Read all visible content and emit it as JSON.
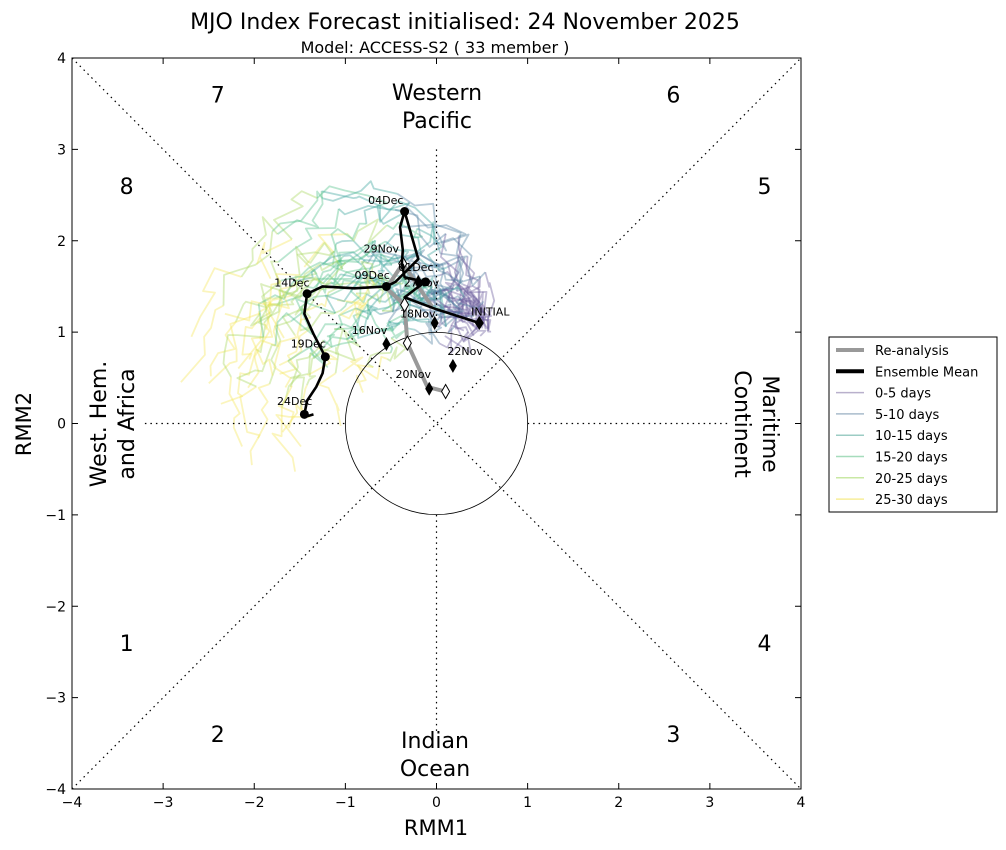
{
  "chart_data": {
    "type": "line",
    "title": "MJO Index Forecast initialised:  24  November 2025",
    "subtitle": "Model: ACCESS-S2 ( 33 member )",
    "xlabel": "RMM1",
    "ylabel": "RMM2",
    "xlim": [
      -4,
      4
    ],
    "ylim": [
      -4,
      4
    ],
    "xticks": [
      "−4",
      "−3",
      "−2",
      "−1",
      "0",
      "1",
      "2",
      "3",
      "4"
    ],
    "yticks": [
      "−4",
      "−3",
      "−2",
      "−1",
      "0",
      "1",
      "2",
      "3",
      "4"
    ],
    "phases": [
      {
        "label": "1",
        "x": -3.4,
        "y": -2.4
      },
      {
        "label": "2",
        "x": -2.4,
        "y": -3.4
      },
      {
        "label": "3",
        "x": 2.6,
        "y": -3.4
      },
      {
        "label": "4",
        "x": 3.6,
        "y": -2.4
      },
      {
        "label": "5",
        "x": 3.6,
        "y": 2.6
      },
      {
        "label": "6",
        "x": 2.6,
        "y": 3.6
      },
      {
        "label": "7",
        "x": -2.4,
        "y": 3.6
      },
      {
        "label": "8",
        "x": -3.4,
        "y": 2.6
      }
    ],
    "regions": {
      "top": [
        "Western",
        "Pacific"
      ],
      "bottom": [
        "Indian",
        "Ocean"
      ],
      "left": [
        "West. Hem.",
        "and Africa"
      ],
      "right": [
        "Maritime",
        "Continent"
      ]
    },
    "reanalysis": {
      "name": "Re-analysis",
      "color": "#999999",
      "x": [
        -0.05,
        -0.37,
        -0.55,
        -0.35,
        -0.32,
        -0.1,
        0.1
      ],
      "y": [
        1.28,
        1.75,
        1.48,
        1.3,
        0.88,
        0.4,
        0.35
      ],
      "markers": [
        1,
        3,
        4,
        6
      ]
    },
    "ensemble_mean": {
      "name": "Ensemble Mean",
      "color": "#000000",
      "x": [
        0.47,
        0.0,
        -0.35,
        -0.22,
        -0.12,
        -0.35,
        -0.38,
        -0.37,
        -0.4,
        -0.35,
        -0.2,
        -0.45,
        -0.55,
        -0.9,
        -1.25,
        -1.42,
        -1.45,
        -1.35,
        -1.22,
        -1.25,
        -1.32,
        -1.42,
        -1.45,
        -1.42,
        -1.35
      ],
      "y": [
        1.1,
        1.25,
        1.38,
        1.48,
        1.55,
        1.6,
        1.75,
        1.9,
        2.15,
        2.32,
        1.8,
        1.55,
        1.5,
        1.48,
        1.5,
        1.42,
        1.2,
        0.98,
        0.73,
        0.55,
        0.4,
        0.25,
        0.1,
        0.08,
        0.1
      ],
      "markers": [
        0,
        4,
        9,
        12,
        15,
        18,
        22
      ]
    },
    "forecast_markers": [
      {
        "x": 0.18,
        "y": 0.63
      },
      {
        "x": -0.08,
        "y": 0.38
      },
      {
        "x": -0.02,
        "y": 1.1
      },
      {
        "x": -0.55,
        "y": 0.87
      },
      {
        "x": -0.2,
        "y": 1.55
      }
    ],
    "date_labels": [
      {
        "text": "INITIAL",
        "x": 0.38,
        "y": 1.18
      },
      {
        "text": "22Nov",
        "x": 0.12,
        "y": 0.75
      },
      {
        "text": "20Nov",
        "x": -0.45,
        "y": 0.5
      },
      {
        "text": "18Nov",
        "x": -0.4,
        "y": 1.16
      },
      {
        "text": "16Nov",
        "x": -0.93,
        "y": 0.98
      },
      {
        "text": "29Nov",
        "x": -0.8,
        "y": 1.87
      },
      {
        "text": "09Dec",
        "x": -0.9,
        "y": 1.58
      },
      {
        "text": "04Dec",
        "x": -0.75,
        "y": 2.4
      },
      {
        "text": "14Dec",
        "x": -1.78,
        "y": 1.5
      },
      {
        "text": "19Dec",
        "x": -1.6,
        "y": 0.83
      },
      {
        "text": "24Dec",
        "x": -1.75,
        "y": 0.2
      },
      {
        "text": "01Dec",
        "x": -0.42,
        "y": 1.67
      },
      {
        "text": "27Nov",
        "x": -0.36,
        "y": 1.5
      }
    ],
    "legend": [
      {
        "label": "Re-analysis",
        "color": "#999999",
        "width": 4
      },
      {
        "label": "Ensemble Mean",
        "color": "#000000",
        "width": 4
      },
      {
        "label": "0-5 days",
        "color": "#b9b0cc",
        "width": 1.5
      },
      {
        "label": "5-10 days",
        "color": "#a9bccc",
        "width": 1.5
      },
      {
        "label": "10-15 days",
        "color": "#9cccc4",
        "width": 1.5
      },
      {
        "label": "15-20 days",
        "color": "#a6dcbc",
        "width": 1.5
      },
      {
        "label": "20-25 days",
        "color": "#c9e8a4",
        "width": 1.5
      },
      {
        "label": "25-30 days",
        "color": "#f7ee9a",
        "width": 1.5
      }
    ],
    "member_stage_colors": [
      "#6a5a9c",
      "#4f7fa0",
      "#3aa29a",
      "#52c08a",
      "#a8d860",
      "#f4e75a"
    ],
    "member_count": 33
  }
}
